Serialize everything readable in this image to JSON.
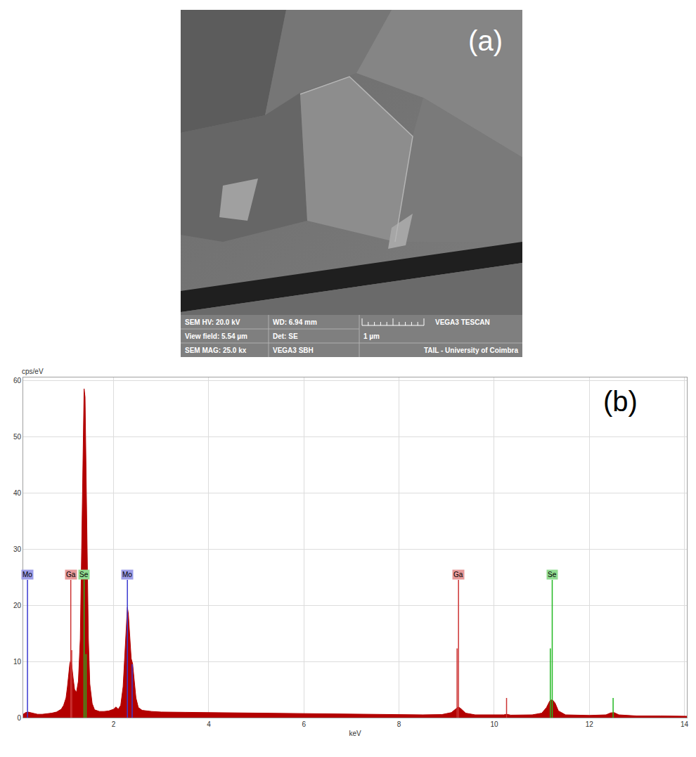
{
  "panel_a": {
    "label": "(a)",
    "info_bar": {
      "rows": [
        [
          "SEM HV: 20.0 kV",
          "WD: 6.94 mm",
          "VEGA3 TESCAN"
        ],
        [
          "View field: 5.54 µm",
          "Det: SE",
          "1 µm"
        ],
        [
          "SEM MAG: 25.0 kx",
          "VEGA3 SBH",
          "TAIL - University of Coimbra"
        ]
      ]
    }
  },
  "chart_data": {
    "type": "area",
    "label": "(b)",
    "xlabel": "keV",
    "ylabel": "cps/eV",
    "color": "#b30000",
    "x": [
      0.1,
      0.15,
      0.2,
      0.3,
      0.4,
      0.5,
      0.6,
      0.7,
      0.8,
      0.9,
      0.95,
      1.0,
      1.03,
      1.06,
      1.08,
      1.1,
      1.12,
      1.15,
      1.18,
      1.22,
      1.26,
      1.3,
      1.33,
      1.36,
      1.38,
      1.4,
      1.42,
      1.44,
      1.47,
      1.5,
      1.55,
      1.6,
      1.7,
      1.8,
      1.9,
      2.0,
      2.05,
      2.1,
      2.15,
      2.2,
      2.24,
      2.27,
      2.29,
      2.31,
      2.34,
      2.37,
      2.4,
      2.43,
      2.47,
      2.52,
      2.6,
      2.8,
      3.0,
      3.5,
      4.0,
      4.5,
      5.0,
      5.5,
      6.0,
      6.5,
      7.0,
      7.5,
      8.0,
      8.5,
      8.9,
      9.1,
      9.2,
      9.25,
      9.3,
      9.4,
      9.6,
      10.0,
      10.2,
      10.26,
      10.35,
      10.8,
      11.0,
      11.1,
      11.17,
      11.22,
      11.28,
      11.35,
      11.5,
      12.0,
      12.35,
      12.45,
      12.52,
      12.62,
      13.0,
      13.5,
      14.0,
      14.05
    ],
    "values": [
      0.6,
      0.9,
      1.0,
      0.8,
      0.6,
      0.6,
      0.7,
      0.8,
      1.0,
      1.5,
      2.2,
      3.5,
      5.5,
      8.0,
      9.6,
      10.2,
      9.4,
      7.0,
      5.0,
      4.5,
      6.5,
      14,
      30,
      50,
      58.5,
      57,
      46,
      30,
      14,
      6,
      2.5,
      1.4,
      1.1,
      1.1,
      1.2,
      1.5,
      1.9,
      1.5,
      2.2,
      5.5,
      12,
      17.5,
      19.6,
      18.5,
      14,
      10.5,
      9.6,
      7,
      3.5,
      1.8,
      1.3,
      1.1,
      1.0,
      0.95,
      0.9,
      0.85,
      0.8,
      0.75,
      0.7,
      0.65,
      0.6,
      0.55,
      0.55,
      0.5,
      0.55,
      0.9,
      1.6,
      1.9,
      1.6,
      0.8,
      0.5,
      0.45,
      0.5,
      0.6,
      0.45,
      0.5,
      0.8,
      1.8,
      3.0,
      3.2,
      2.6,
      1.2,
      0.5,
      0.4,
      0.5,
      0.85,
      0.9,
      0.5,
      0.3,
      0.3,
      0.25,
      0.25
    ],
    "xlim": [
      0.1,
      14.05
    ],
    "xticks": [
      2,
      4,
      6,
      8,
      10,
      12,
      14
    ],
    "ylim": [
      0,
      60.5
    ],
    "yticks": [
      0,
      10,
      20,
      30,
      40,
      50,
      60
    ],
    "grid": true,
    "element_lines": [
      {
        "label": "Mo",
        "color": "#3a3ad0",
        "x": [
          0.19,
          2.29,
          2.39
        ],
        "values": [
          24.5,
          24.5,
          9.5
        ],
        "label_x": [
          0.19,
          2.29
        ],
        "label_y": 24.5
      },
      {
        "label": "Ga",
        "color": "#cc3333",
        "x": [
          1.1,
          1.12,
          9.22,
          9.25,
          10.26
        ],
        "values": [
          24.5,
          12.0,
          12.3,
          24.5,
          3.5
        ],
        "label_x": [
          1.1,
          9.25
        ],
        "label_y": 24.5
      },
      {
        "label": "Se",
        "color": "#22b822",
        "x": [
          1.38,
          1.42,
          11.18,
          11.22,
          12.5
        ],
        "values": [
          24.5,
          11.3,
          12.3,
          24.5,
          3.5
        ],
        "label_x": [
          1.38,
          11.22
        ],
        "label_y": 24.5
      }
    ]
  }
}
